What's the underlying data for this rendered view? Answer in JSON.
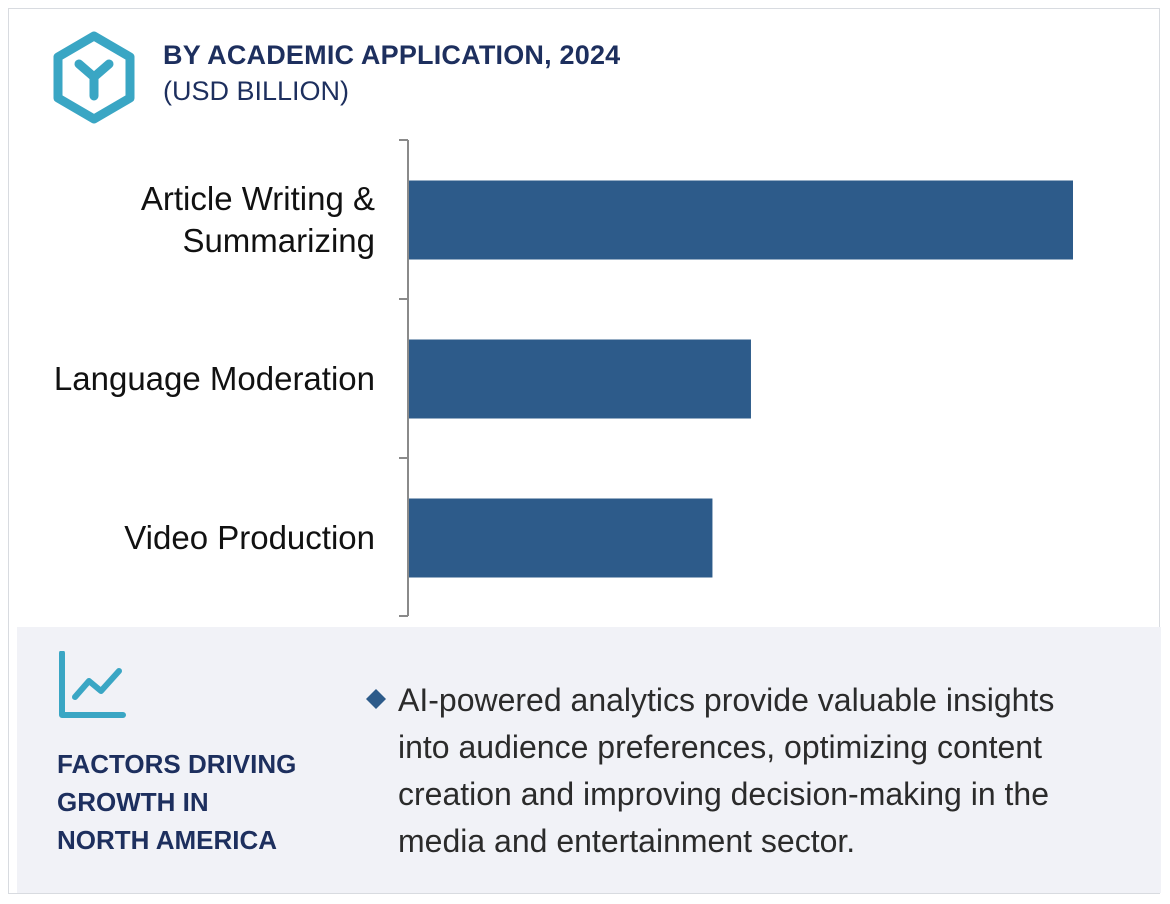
{
  "header": {
    "title": "BY ACADEMIC APPLICATION, 2024",
    "subtitle": "(USD BILLION)"
  },
  "colors": {
    "bar": "#2d5b8a",
    "accent_teal": "#3aa6c4",
    "heading_navy": "#1d2f5e",
    "panel_bg": "#f1f2f7"
  },
  "chart_data": {
    "type": "bar",
    "orientation": "horizontal",
    "categories": [
      "Article Writing & Summarizing",
      "Language Moderation",
      "Video Production"
    ],
    "category_lines": [
      [
        "Article Writing &",
        "Summarizing"
      ],
      [
        "Language Moderation"
      ],
      [
        "Video Production"
      ]
    ],
    "values": [
      1.0,
      0.515,
      0.457
    ],
    "value_scale": "relative (no value axis printed)",
    "grid": false,
    "legend": "none"
  },
  "factors": {
    "icon": "trend-line-icon",
    "title_lines": [
      "FACTORS DRIVING",
      "GROWTH IN",
      "NORTH AMERICA"
    ],
    "bullet_icon": "diamond-icon",
    "bullet_lines": [
      "AI-powered analytics provide valuable insights",
      "into audience preferences, optimizing content",
      "creation and improving decision-making in the",
      "media and entertainment sector."
    ]
  }
}
